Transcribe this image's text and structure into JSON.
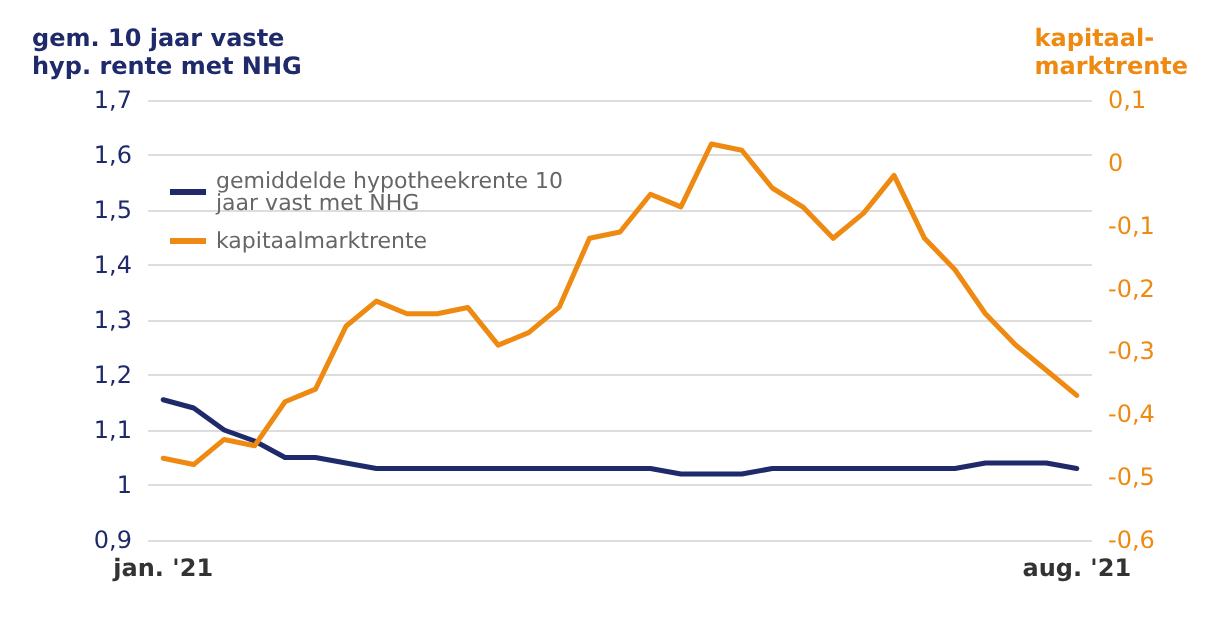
{
  "chart_data": {
    "type": "line",
    "ylabel": "gem. 10 jaar vaste hyp. rente met NHG",
    "y2label": "kapitaal-\nmarktrente",
    "categories": [
      "jan. '21",
      null,
      null,
      null,
      null,
      null,
      null,
      null,
      null,
      null,
      null,
      null,
      null,
      null,
      null,
      null,
      null,
      null,
      null,
      null,
      null,
      null,
      null,
      null,
      null,
      null,
      null,
      null,
      null,
      null,
      "aug. '21"
    ],
    "series": [
      {
        "name": "gemiddelde hypotheekrente 10 jaar vast met NHG",
        "color": "#1f2a6b",
        "values": [
          1.155,
          1.14,
          1.1,
          1.08,
          1.05,
          1.05,
          1.04,
          1.03,
          1.03,
          1.03,
          1.03,
          1.03,
          1.03,
          1.03,
          1.03,
          1.03,
          1.03,
          1.02,
          1.02,
          1.02,
          1.03,
          1.03,
          1.03,
          1.03,
          1.03,
          1.03,
          1.03,
          1.04,
          1.04,
          1.04,
          1.03
        ]
      },
      {
        "name": "kapitaalmarktrente",
        "color": "#ee8a12",
        "axis": "y2",
        "values": [
          -0.47,
          -0.48,
          -0.44,
          -0.45,
          -0.38,
          -0.36,
          -0.26,
          -0.22,
          -0.24,
          -0.24,
          -0.23,
          -0.29,
          -0.27,
          -0.23,
          -0.12,
          -0.11,
          -0.05,
          -0.07,
          0.03,
          0.02,
          -0.04,
          -0.07,
          -0.12,
          -0.08,
          -0.02,
          -0.12,
          -0.17,
          -0.24,
          -0.29,
          -0.33,
          -0.37
        ]
      }
    ],
    "ylim": [
      0.9,
      1.7
    ],
    "yticks": [
      {
        "value": 0.9,
        "label": "0,9"
      },
      {
        "value": 1,
        "label": "1"
      },
      {
        "value": 1.1,
        "label": "1,1"
      },
      {
        "value": 1.2,
        "label": "1,2"
      },
      {
        "value": 1.3,
        "label": "1,3"
      },
      {
        "value": 1.4,
        "label": "1,4"
      },
      {
        "value": 1.5,
        "label": "1,5"
      },
      {
        "value": 1.6,
        "label": "1,6"
      },
      {
        "value": 1.7,
        "label": "1,7"
      }
    ],
    "y2lim": [
      -0.6,
      0.1
    ],
    "y2ticks": [
      {
        "value": -0.6,
        "label": "-0,6"
      },
      {
        "value": -0.5,
        "label": "-0,5"
      },
      {
        "value": -0.4,
        "label": "-0,4"
      },
      {
        "value": -0.3,
        "label": "-0,3"
      },
      {
        "value": -0.2,
        "label": "-0,2"
      },
      {
        "value": -0.1,
        "label": "-0,1"
      },
      {
        "value": 0,
        "label": "0"
      },
      {
        "value": 0.1,
        "label": "0,1"
      }
    ],
    "grid": "y",
    "legend": "top left",
    "marker": "none",
    "line_style": "solid"
  }
}
